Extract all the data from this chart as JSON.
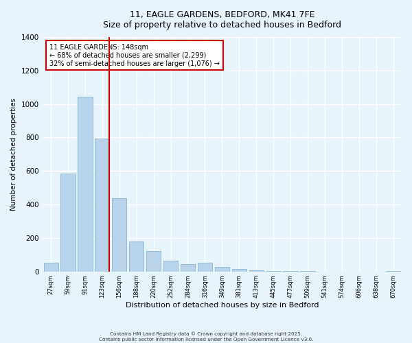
{
  "title_line1": "11, EAGLE GARDENS, BEDFORD, MK41 7FE",
  "title_line2": "Size of property relative to detached houses in Bedford",
  "xlabel": "Distribution of detached houses by size in Bedford",
  "ylabel": "Number of detached properties",
  "bar_labels": [
    "27sqm",
    "59sqm",
    "91sqm",
    "123sqm",
    "156sqm",
    "188sqm",
    "220sqm",
    "252sqm",
    "284sqm",
    "316sqm",
    "349sqm",
    "381sqm",
    "413sqm",
    "445sqm",
    "477sqm",
    "509sqm",
    "541sqm",
    "574sqm",
    "606sqm",
    "638sqm",
    "670sqm"
  ],
  "bar_values": [
    50,
    585,
    1045,
    795,
    435,
    180,
    120,
    65,
    45,
    50,
    25,
    15,
    8,
    3,
    2,
    1,
    0,
    0,
    0,
    0,
    2
  ],
  "bar_color": "#b8d4ea",
  "bar_edge_color": "#90b8d8",
  "vline_color": "#cc0000",
  "annotation_title": "11 EAGLE GARDENS: 148sqm",
  "annotation_line2": "← 68% of detached houses are smaller (2,299)",
  "annotation_line3": "32% of semi-detached houses are larger (1,076) →",
  "annotation_box_color": "#ffffff",
  "annotation_box_edge": "#cc0000",
  "ylim": [
    0,
    1400
  ],
  "yticks": [
    0,
    200,
    400,
    600,
    800,
    1000,
    1200,
    1400
  ],
  "background_color": "#e8f4fc",
  "grid_color": "#ffffff",
  "footer_line1": "Contains HM Land Registry data © Crown copyright and database right 2025.",
  "footer_line2": "Contains public sector information licensed under the Open Government Licence v3.0."
}
